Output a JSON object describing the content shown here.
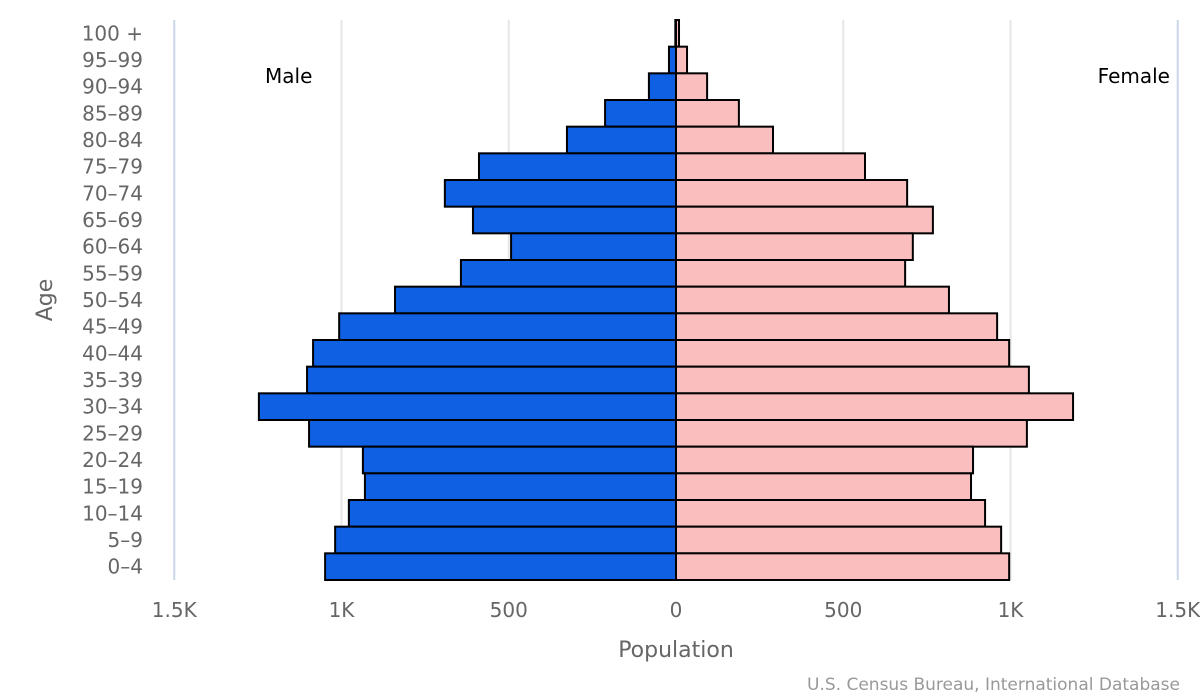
{
  "chart_data": {
    "type": "bar",
    "subtype": "population-pyramid",
    "orientation": "horizontal",
    "title": "",
    "xlabel": "Population",
    "ylabel": "Age",
    "credit": "U.S. Census Bureau, International Database",
    "xlim": [
      -1500,
      1500
    ],
    "x_ticks": [
      {
        "value": -1500,
        "label": "1.5K"
      },
      {
        "value": -1000,
        "label": "1K"
      },
      {
        "value": -500,
        "label": "500"
      },
      {
        "value": 0,
        "label": "0"
      },
      {
        "value": 500,
        "label": "500"
      },
      {
        "value": 1000,
        "label": "1K"
      },
      {
        "value": 1500,
        "label": "1.5K"
      }
    ],
    "grid": true,
    "categories": [
      "100 +",
      "95-99",
      "90-94",
      "85-89",
      "80-84",
      "75-79",
      "70-74",
      "65-69",
      "60-64",
      "55-59",
      "50-54",
      "45-49",
      "40-44",
      "35-39",
      "30-34",
      "25-29",
      "20-24",
      "15-19",
      "10-14",
      "5-9",
      "0-4"
    ],
    "series": [
      {
        "name": "Male",
        "side": "left",
        "color": "#1060E4",
        "values": [
          2,
          21,
          81,
          212,
          326,
          589,
          691,
          607,
          493,
          643,
          840,
          1007,
          1085,
          1103,
          1247,
          1097,
          936,
          930,
          978,
          1019,
          1049
        ]
      },
      {
        "name": "Female",
        "side": "right",
        "color": "#FBBEBE",
        "values": [
          9,
          33,
          93,
          188,
          290,
          565,
          691,
          768,
          708,
          685,
          816,
          960,
          996,
          1055,
          1187,
          1049,
          888,
          882,
          924,
          972,
          996
        ]
      }
    ],
    "legend": "none",
    "series_labels": {
      "left": "Male",
      "right": "Female"
    },
    "bar_outline_color": "#000000"
  }
}
